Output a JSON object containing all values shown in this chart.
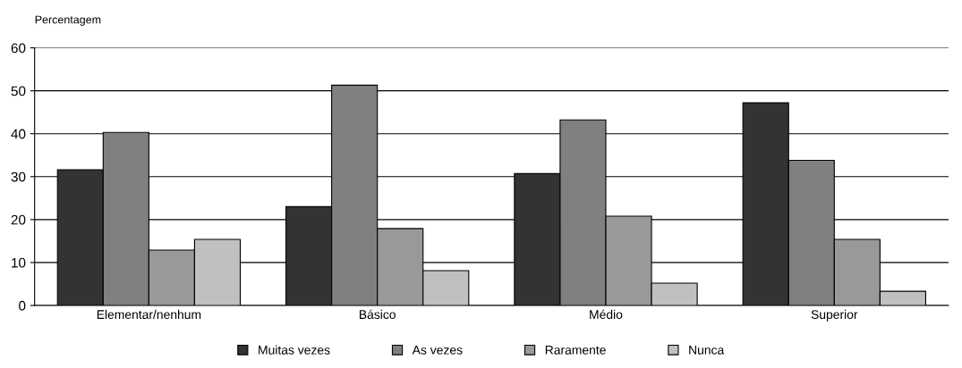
{
  "chart_data": {
    "type": "bar",
    "ylabel": "Percentagem",
    "categories": [
      "Elementar/nenhum",
      "Básico",
      "Médio",
      "Superior"
    ],
    "series": [
      {
        "name": "Muitas vezes",
        "color": "#333333",
        "values": [
          31.6,
          23.0,
          30.7,
          47.2
        ]
      },
      {
        "name": "As vezes",
        "color": "#808080",
        "values": [
          40.3,
          51.3,
          43.2,
          33.8
        ]
      },
      {
        "name": "Raramente",
        "color": "#999999",
        "values": [
          12.9,
          17.9,
          20.8,
          15.4
        ]
      },
      {
        "name": "Nunca",
        "color": "#c0c0c0",
        "values": [
          15.4,
          8.1,
          5.2,
          3.3
        ]
      }
    ],
    "ylim": [
      0,
      60
    ],
    "yticks": [
      0,
      10,
      20,
      30,
      40,
      50,
      60
    ],
    "grid": "y",
    "legend": "bottom"
  }
}
